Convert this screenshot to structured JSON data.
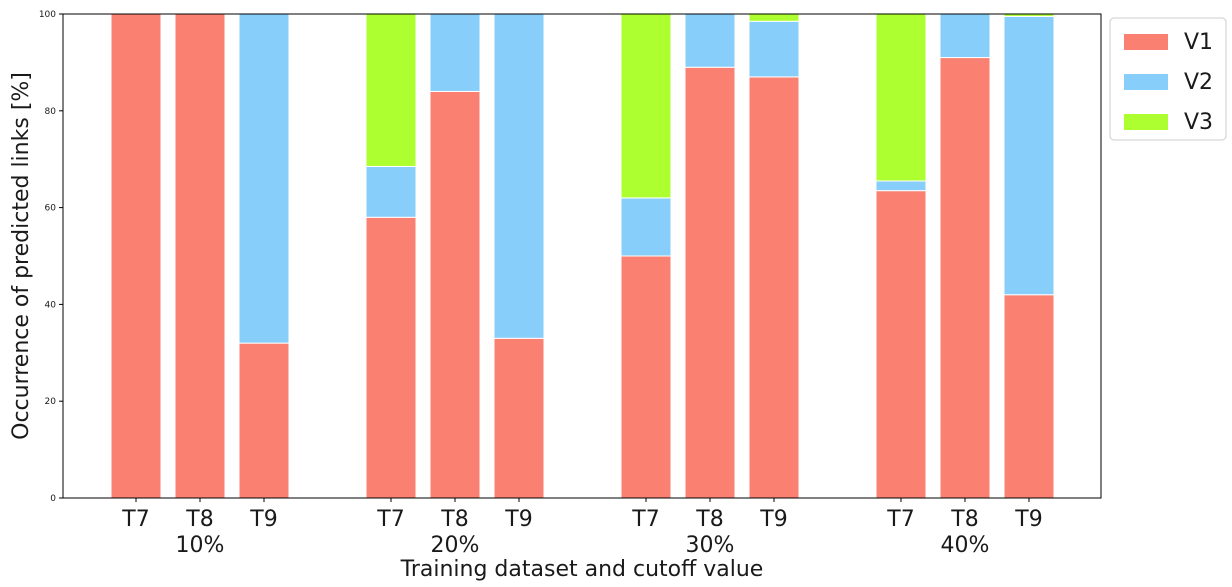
{
  "chart_data": {
    "type": "bar",
    "stacked": true,
    "xlabel": "Training dataset and cutoff value",
    "ylabel": "Occurrence of predicted links [%]",
    "ylim": [
      0,
      100
    ],
    "yticks": [
      0,
      20,
      40,
      60,
      80,
      100
    ],
    "grid": false,
    "legend_position": "outside top-right",
    "groups": [
      {
        "label": "10%",
        "categories": [
          "T7",
          "T8",
          "T9"
        ]
      },
      {
        "label": "20%",
        "categories": [
          "T7",
          "T8",
          "T9"
        ]
      },
      {
        "label": "30%",
        "categories": [
          "T7",
          "T8",
          "T9"
        ]
      },
      {
        "label": "40%",
        "categories": [
          "T7",
          "T8",
          "T9"
        ]
      }
    ],
    "series": [
      {
        "name": "V1",
        "color": "#fa8072",
        "values": [
          100,
          100,
          32,
          58,
          84,
          33,
          50,
          89,
          87,
          63.5,
          91,
          42
        ]
      },
      {
        "name": "V2",
        "color": "#87cefa",
        "values": [
          0,
          0,
          68,
          10.5,
          16,
          67,
          12,
          11,
          11.5,
          2,
          9,
          57.5
        ]
      },
      {
        "name": "V3",
        "color": "#adff2f",
        "values": [
          0,
          0,
          0,
          31.5,
          0,
          0,
          38,
          0,
          1.5,
          34.5,
          0,
          0.5
        ]
      }
    ]
  }
}
